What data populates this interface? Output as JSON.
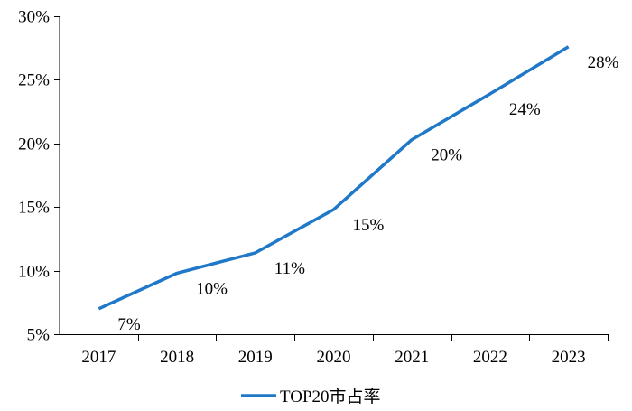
{
  "chart_data": {
    "type": "line",
    "title": "",
    "xlabel": "",
    "ylabel": "",
    "categories": [
      "2017",
      "2018",
      "2019",
      "2020",
      "2021",
      "2022",
      "2023"
    ],
    "series": [
      {
        "name": "TOP20市占率",
        "values": [
          7.0,
          9.8,
          11.4,
          14.8,
          20.3,
          23.9,
          27.6
        ],
        "data_labels": [
          "7%",
          "10%",
          "11%",
          "15%",
          "20%",
          "24%",
          "28%"
        ],
        "color": "#1f78c8"
      }
    ],
    "ylim": [
      5,
      30
    ],
    "y_ticks": [
      5,
      10,
      15,
      20,
      25,
      30
    ],
    "y_tick_labels": [
      "5%",
      "10%",
      "15%",
      "20%",
      "25%",
      "30%"
    ],
    "grid": false,
    "legend_position": "bottom-center"
  }
}
